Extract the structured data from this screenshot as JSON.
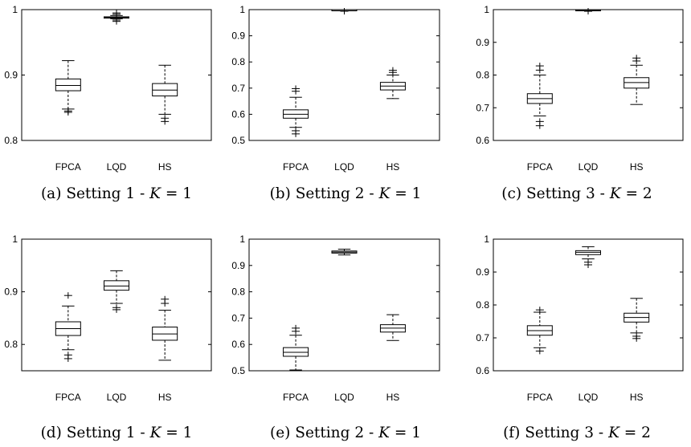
{
  "chart_data": [
    {
      "type": "box",
      "caption": "(a) Setting 1 - K = 1",
      "caption_prefix": "(a) Setting 1 - ",
      "caption_var": "K",
      "caption_suffix": " = 1",
      "categories": [
        "FPCA",
        "LQD",
        "HS"
      ],
      "ylim": [
        0.8,
        1
      ],
      "yticks": [
        0.8,
        0.9,
        1
      ],
      "ytick_labels": [
        "0.8",
        "0.9",
        "1"
      ],
      "boxes": [
        {
          "min": 0.848,
          "q1": 0.876,
          "median": 0.884,
          "q3": 0.894,
          "max": 0.922,
          "outliers": [
            0.845,
            0.843
          ]
        },
        {
          "min": 0.986,
          "q1": 0.987,
          "median": 0.988,
          "q3": 0.989,
          "max": 0.991,
          "outliers": [
            0.982,
            0.984,
            0.993,
            0.995
          ]
        },
        {
          "min": 0.84,
          "q1": 0.868,
          "median": 0.877,
          "q3": 0.887,
          "max": 0.915,
          "outliers": [
            0.834,
            0.829
          ]
        }
      ]
    },
    {
      "type": "box",
      "caption": "(b) Setting 2 - K = 1",
      "caption_prefix": "(b) Setting 2 - ",
      "caption_var": "K",
      "caption_suffix": " = 1",
      "categories": [
        "FPCA",
        "LQD",
        "HS"
      ],
      "ylim": [
        0.5,
        1
      ],
      "yticks": [
        0.5,
        0.6,
        0.7,
        0.8,
        0.9,
        1
      ],
      "ytick_labels": [
        "0.5",
        "0.6",
        "0.7",
        "0.8",
        "0.9",
        "1"
      ],
      "boxes": [
        {
          "min": 0.55,
          "q1": 0.585,
          "median": 0.6,
          "q3": 0.617,
          "max": 0.665,
          "outliers": [
            0.537,
            0.525,
            0.688,
            0.698
          ]
        },
        {
          "min": 0.998,
          "q1": 0.999,
          "median": 0.9995,
          "q3": 1.0,
          "max": 1.0,
          "outliers": [
            0.994
          ]
        },
        {
          "min": 0.66,
          "q1": 0.693,
          "median": 0.708,
          "q3": 0.722,
          "max": 0.75,
          "outliers": [
            0.76,
            0.768
          ]
        }
      ]
    },
    {
      "type": "box",
      "caption": "(c) Setting 3 - K = 2",
      "caption_prefix": "(c) Setting 3 - ",
      "caption_var": "K",
      "caption_suffix": " = 2",
      "categories": [
        "FPCA",
        "LQD",
        "HS"
      ],
      "ylim": [
        0.6,
        1
      ],
      "yticks": [
        0.6,
        0.7,
        0.8,
        0.9,
        1
      ],
      "ytick_labels": [
        "0.6",
        "0.7",
        "0.8",
        "0.9",
        "1"
      ],
      "boxes": [
        {
          "min": 0.675,
          "q1": 0.713,
          "median": 0.728,
          "q3": 0.743,
          "max": 0.8,
          "outliers": [
            0.658,
            0.645,
            0.815,
            0.828
          ]
        },
        {
          "min": 0.997,
          "q1": 0.998,
          "median": 0.999,
          "q3": 1.0,
          "max": 1.0,
          "outliers": [
            0.995
          ]
        },
        {
          "min": 0.71,
          "q1": 0.76,
          "median": 0.777,
          "q3": 0.792,
          "max": 0.83,
          "outliers": [
            0.843,
            0.852
          ]
        }
      ]
    },
    {
      "type": "box",
      "caption": "(d) Setting 1 - K = 1",
      "caption_prefix": "(d) Setting 1 - ",
      "caption_var": "K",
      "caption_suffix": " = 1",
      "categories": [
        "FPCA",
        "LQD",
        "HS"
      ],
      "ylim": [
        0.75,
        1
      ],
      "yticks": [
        0.8,
        0.9,
        1
      ],
      "ytick_labels": [
        "0.8",
        "0.9",
        "1"
      ],
      "boxes": [
        {
          "min": 0.79,
          "q1": 0.817,
          "median": 0.83,
          "q3": 0.843,
          "max": 0.873,
          "outliers": [
            0.78,
            0.773,
            0.893
          ]
        },
        {
          "min": 0.878,
          "q1": 0.903,
          "median": 0.911,
          "q3": 0.921,
          "max": 0.94,
          "outliers": [
            0.87,
            0.866
          ]
        },
        {
          "min": 0.77,
          "q1": 0.808,
          "median": 0.82,
          "q3": 0.833,
          "max": 0.865,
          "outliers": [
            0.878,
            0.886
          ]
        }
      ]
    },
    {
      "type": "box",
      "caption": "(e) Setting 2 - K = 1",
      "caption_prefix": "(e) Setting 2 - ",
      "caption_var": "K",
      "caption_suffix": " = 1",
      "categories": [
        "FPCA",
        "LQD",
        "HS"
      ],
      "ylim": [
        0.5,
        1
      ],
      "yticks": [
        0.5,
        0.6,
        0.7,
        0.8,
        0.9,
        1
      ],
      "ytick_labels": [
        "0.5",
        "0.6",
        "0.7",
        "0.8",
        "0.9",
        "1"
      ],
      "boxes": [
        {
          "min": 0.503,
          "q1": 0.555,
          "median": 0.57,
          "q3": 0.588,
          "max": 0.635,
          "outliers": [
            0.65,
            0.662
          ]
        },
        {
          "min": 0.94,
          "q1": 0.947,
          "median": 0.951,
          "q3": 0.955,
          "max": 0.962,
          "outliers": []
        },
        {
          "min": 0.615,
          "q1": 0.647,
          "median": 0.662,
          "q3": 0.675,
          "max": 0.713,
          "outliers": []
        }
      ]
    },
    {
      "type": "box",
      "caption": "(f) Setting 3 - K = 2",
      "caption_prefix": "(f) Setting 3 - ",
      "caption_var": "K",
      "caption_suffix": " = 2",
      "categories": [
        "FPCA",
        "LQD",
        "HS"
      ],
      "ylim": [
        0.6,
        1
      ],
      "yticks": [
        0.6,
        0.7,
        0.8,
        0.9,
        1
      ],
      "ytick_labels": [
        "0.6",
        "0.7",
        "0.8",
        "0.9",
        "1"
      ],
      "boxes": [
        {
          "min": 0.67,
          "q1": 0.708,
          "median": 0.722,
          "q3": 0.737,
          "max": 0.778,
          "outliers": [
            0.66,
            0.785
          ]
        },
        {
          "min": 0.94,
          "q1": 0.953,
          "median": 0.96,
          "q3": 0.965,
          "max": 0.977,
          "outliers": [
            0.93,
            0.922
          ]
        },
        {
          "min": 0.715,
          "q1": 0.748,
          "median": 0.762,
          "q3": 0.775,
          "max": 0.82,
          "outliers": [
            0.705,
            0.698
          ]
        }
      ]
    }
  ]
}
